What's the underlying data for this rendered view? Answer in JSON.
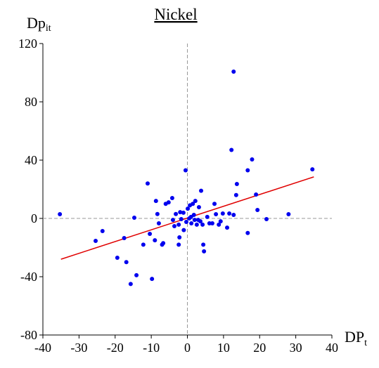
{
  "chart_data": {
    "type": "scatter",
    "title": "Nickel",
    "x_label": "DP",
    "x_label_sub": "t",
    "y_label": "Dp",
    "y_label_sub": "it",
    "xlim": [
      -40,
      40
    ],
    "ylim": [
      -80,
      120
    ],
    "xticks": [
      -40,
      -30,
      -20,
      -10,
      0,
      10,
      20,
      30,
      40
    ],
    "yticks": [
      -80,
      -40,
      0,
      40,
      80,
      120
    ],
    "zero_lines": true,
    "series": [
      {
        "color": "#0000ee",
        "x": [
          -35.3,
          -25.4,
          -23.5,
          -19.4,
          -17.5,
          -16.9,
          -15.7,
          -14.7,
          -14.1,
          -12.2,
          -11,
          -9.8,
          -10.4,
          -8.7,
          -8.3,
          -7.9,
          -6.7,
          -6,
          -5.2,
          -4.2,
          -3.6,
          -3.2,
          -2.4,
          -2.2,
          -2.4,
          -2,
          -1.7,
          -1.1,
          -0.5,
          -0.3,
          0.1,
          0.7,
          1.1,
          1.5,
          1.8,
          2.2,
          2.6,
          3.2,
          3.8,
          3.6,
          4.2,
          4.6,
          4.4,
          5.5,
          6.1,
          6.9,
          7.5,
          7.9,
          8.7,
          9.2,
          9.8,
          11,
          11.6,
          12.2,
          12.8,
          12.8,
          13.7,
          13.5,
          16.7,
          16.7,
          17.9,
          19,
          19.4,
          21.9,
          28,
          34.6,
          -7,
          -9,
          -1,
          0.5,
          2,
          -4,
          1,
          3
        ],
        "values": [
          2.9,
          -15.4,
          -8.7,
          -27,
          -13.5,
          -30,
          -45,
          0.5,
          -39,
          -18,
          24,
          -41.5,
          -10.6,
          12,
          3,
          -3.4,
          -17,
          10,
          11,
          14,
          -5.3,
          3,
          -4.3,
          -13,
          -18,
          4.3,
          -0.5,
          3.9,
          33,
          -2.4,
          6.7,
          9,
          -3.4,
          10,
          2.4,
          12,
          -4.3,
          7.7,
          19,
          -2,
          -4.3,
          -22.6,
          -18,
          1,
          -3.4,
          -3.4,
          10,
          2.9,
          -4.3,
          -2,
          3.4,
          -6.3,
          3.4,
          47,
          100.7,
          2.4,
          23.6,
          16,
          33,
          -10,
          40.5,
          16.4,
          5.8,
          -0.5,
          2.9,
          33.7,
          -18,
          -15,
          -8,
          0,
          -1,
          -1,
          1,
          -1
        ]
      }
    ],
    "fit_line": {
      "color": "#e00000",
      "x": [
        -35,
        35
      ],
      "values": [
        -28,
        28.5
      ]
    }
  }
}
